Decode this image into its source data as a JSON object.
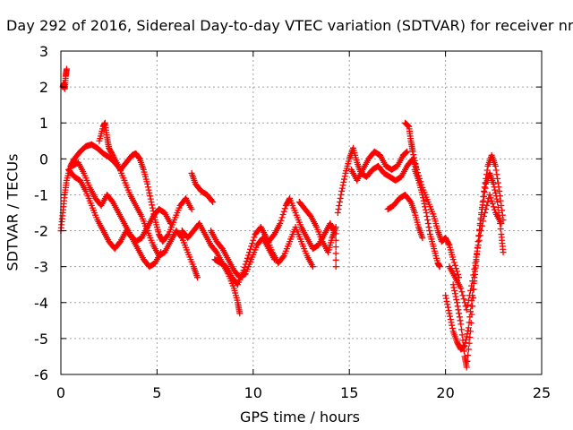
{
  "chart_data": {
    "type": "scatter",
    "title": "Day 292 of 2016, Sidereal Day-to-day VTEC variation (SDTVAR) for receiver nr",
    "xlabel": "GPS time / hours",
    "ylabel": "SDTVAR / TECUs",
    "xlim": [
      0,
      25
    ],
    "ylim": [
      -6,
      3
    ],
    "xticks": [
      0,
      5,
      10,
      15,
      20,
      25
    ],
    "yticks": [
      3,
      2,
      1,
      0,
      -1,
      -2,
      -3,
      -4,
      -5,
      -6
    ],
    "grid": true,
    "marker": "+",
    "marker_color": "#ff0000",
    "series": [
      {
        "values": [
          [
            0.1,
            2.0
          ],
          [
            0.15,
            2.1
          ],
          [
            0.2,
            1.95
          ],
          [
            0.25,
            2.3
          ],
          [
            0.3,
            2.5
          ]
        ]
      },
      {
        "values": [
          [
            0.0,
            -2.0
          ],
          [
            0.1,
            -1.5
          ],
          [
            0.2,
            -1.0
          ],
          [
            0.3,
            -0.6
          ],
          [
            0.5,
            -0.2
          ],
          [
            0.7,
            0.0
          ],
          [
            1.0,
            0.2
          ],
          [
            1.3,
            0.35
          ],
          [
            1.6,
            0.4
          ],
          [
            1.9,
            0.3
          ],
          [
            2.2,
            0.15
          ],
          [
            2.5,
            0.05
          ],
          [
            2.8,
            -0.1
          ],
          [
            3.1,
            -0.3
          ],
          [
            3.4,
            -0.1
          ],
          [
            3.7,
            0.1
          ],
          [
            3.9,
            0.15
          ],
          [
            4.1,
            0.0
          ],
          [
            4.3,
            -0.3
          ],
          [
            4.5,
            -0.7
          ],
          [
            4.7,
            -1.2
          ],
          [
            4.9,
            -1.7
          ],
          [
            5.1,
            -2.1
          ],
          [
            5.3,
            -2.3
          ],
          [
            5.6,
            -2.1
          ],
          [
            5.9,
            -1.7
          ],
          [
            6.2,
            -1.3
          ],
          [
            6.5,
            -1.1
          ],
          [
            6.8,
            -1.4
          ]
        ]
      },
      {
        "values": [
          [
            2.0,
            0.5
          ],
          [
            2.2,
            0.9
          ],
          [
            2.3,
            1.0
          ],
          [
            2.4,
            0.6
          ],
          [
            2.5,
            0.3
          ],
          [
            2.7,
            0.1
          ],
          [
            3.0,
            -0.2
          ],
          [
            3.3,
            -0.6
          ],
          [
            3.6,
            -1.0
          ],
          [
            3.9,
            -1.3
          ],
          [
            4.2,
            -1.6
          ],
          [
            4.5,
            -2.0
          ],
          [
            4.8,
            -2.4
          ],
          [
            5.1,
            -2.7
          ],
          [
            5.4,
            -2.6
          ],
          [
            5.7,
            -2.3
          ],
          [
            6.0,
            -2.0
          ],
          [
            6.3,
            -2.2
          ],
          [
            6.6,
            -2.6
          ],
          [
            6.9,
            -3.0
          ],
          [
            7.1,
            -3.3
          ]
        ]
      },
      {
        "values": [
          [
            0.4,
            -0.3
          ],
          [
            0.7,
            -0.5
          ],
          [
            1.0,
            -0.6
          ],
          [
            1.3,
            -0.9
          ],
          [
            1.6,
            -1.3
          ],
          [
            1.9,
            -1.7
          ],
          [
            2.2,
            -2.0
          ],
          [
            2.5,
            -2.3
          ],
          [
            2.8,
            -2.5
          ],
          [
            3.1,
            -2.3
          ],
          [
            3.4,
            -2.0
          ],
          [
            3.7,
            -2.2
          ],
          [
            4.0,
            -2.5
          ],
          [
            4.3,
            -2.8
          ],
          [
            4.6,
            -3.0
          ],
          [
            4.9,
            -2.9
          ],
          [
            5.2,
            -2.6
          ]
        ]
      },
      {
        "values": [
          [
            0.6,
            -0.2
          ],
          [
            0.9,
            -0.1
          ],
          [
            1.2,
            -0.4
          ],
          [
            1.5,
            -0.8
          ],
          [
            1.8,
            -1.1
          ],
          [
            2.1,
            -1.3
          ],
          [
            2.4,
            -1.0
          ],
          [
            2.7,
            -1.2
          ],
          [
            3.0,
            -1.5
          ],
          [
            3.3,
            -1.8
          ],
          [
            3.6,
            -2.1
          ],
          [
            3.9,
            -2.3
          ],
          [
            4.2,
            -2.2
          ],
          [
            4.5,
            -1.9
          ],
          [
            4.8,
            -1.6
          ],
          [
            5.1,
            -1.4
          ],
          [
            5.4,
            -1.5
          ],
          [
            5.7,
            -1.8
          ]
        ]
      },
      {
        "values": [
          [
            6.8,
            -0.4
          ],
          [
            7.0,
            -0.7
          ],
          [
            7.3,
            -0.9
          ],
          [
            7.6,
            -1.0
          ],
          [
            7.9,
            -1.2
          ]
        ]
      },
      {
        "values": [
          [
            6.3,
            -2.0
          ],
          [
            6.6,
            -2.2
          ],
          [
            6.9,
            -2.0
          ],
          [
            7.2,
            -1.8
          ],
          [
            7.5,
            -2.1
          ],
          [
            7.8,
            -2.4
          ],
          [
            8.1,
            -2.6
          ],
          [
            8.4,
            -2.9
          ],
          [
            8.7,
            -3.2
          ],
          [
            9.0,
            -3.6
          ],
          [
            9.2,
            -4.0
          ],
          [
            9.3,
            -4.3
          ]
        ]
      },
      {
        "values": [
          [
            7.8,
            -2.0
          ],
          [
            8.1,
            -2.3
          ],
          [
            8.4,
            -2.5
          ],
          [
            8.7,
            -2.8
          ],
          [
            9.0,
            -3.1
          ],
          [
            9.3,
            -3.3
          ],
          [
            9.6,
            -3.2
          ],
          [
            9.9,
            -2.8
          ],
          [
            10.2,
            -2.4
          ],
          [
            10.5,
            -2.2
          ],
          [
            10.8,
            -2.5
          ],
          [
            11.1,
            -2.8
          ]
        ]
      },
      {
        "values": [
          [
            8.0,
            -2.8
          ],
          [
            8.3,
            -2.9
          ],
          [
            8.6,
            -3.0
          ],
          [
            8.9,
            -3.3
          ],
          [
            9.2,
            -3.5
          ],
          [
            9.5,
            -3.1
          ],
          [
            9.8,
            -2.6
          ],
          [
            10.1,
            -2.1
          ],
          [
            10.4,
            -1.9
          ],
          [
            10.7,
            -2.2
          ],
          [
            11.0,
            -2.6
          ],
          [
            11.3,
            -2.9
          ],
          [
            11.6,
            -2.7
          ],
          [
            11.9,
            -2.3
          ],
          [
            12.2,
            -1.9
          ],
          [
            12.5,
            -2.3
          ],
          [
            12.8,
            -2.7
          ],
          [
            13.1,
            -3.0
          ]
        ]
      },
      {
        "values": [
          [
            10.8,
            -2.3
          ],
          [
            11.1,
            -2.1
          ],
          [
            11.4,
            -1.8
          ],
          [
            11.7,
            -1.3
          ],
          [
            11.9,
            -1.1
          ],
          [
            12.2,
            -1.5
          ],
          [
            12.5,
            -1.9
          ],
          [
            12.8,
            -2.2
          ],
          [
            13.1,
            -2.5
          ],
          [
            13.4,
            -2.4
          ],
          [
            13.7,
            -2.1
          ],
          [
            14.0,
            -1.8
          ],
          [
            14.2,
            -2.0
          ]
        ]
      },
      {
        "values": [
          [
            12.4,
            -1.2
          ],
          [
            12.7,
            -1.4
          ],
          [
            13.0,
            -1.6
          ],
          [
            13.3,
            -1.9
          ],
          [
            13.6,
            -2.3
          ],
          [
            13.9,
            -2.6
          ],
          [
            14.1,
            -2.2
          ],
          [
            14.3,
            -1.9
          ],
          [
            14.3,
            -3.0
          ]
        ]
      },
      {
        "values": [
          [
            14.4,
            -1.5
          ],
          [
            14.6,
            -0.9
          ],
          [
            14.8,
            -0.4
          ],
          [
            15.0,
            0.0
          ],
          [
            15.2,
            0.3
          ],
          [
            15.4,
            -0.1
          ],
          [
            15.6,
            -0.4
          ],
          [
            15.9,
            -0.5
          ],
          [
            16.2,
            -0.3
          ],
          [
            16.5,
            -0.2
          ],
          [
            16.8,
            -0.4
          ],
          [
            17.1,
            -0.5
          ],
          [
            17.4,
            -0.6
          ],
          [
            17.7,
            -0.5
          ],
          [
            18.0,
            -0.2
          ],
          [
            18.3,
            0.0
          ],
          [
            18.5,
            -0.3
          ]
        ]
      },
      {
        "values": [
          [
            15.1,
            -0.3
          ],
          [
            15.4,
            -0.6
          ],
          [
            15.7,
            -0.3
          ],
          [
            16.0,
            0.0
          ],
          [
            16.3,
            0.2
          ],
          [
            16.6,
            0.1
          ],
          [
            16.9,
            -0.2
          ],
          [
            17.2,
            -0.3
          ],
          [
            17.5,
            -0.2
          ],
          [
            17.8,
            0.1
          ],
          [
            18.0,
            0.2
          ]
        ]
      },
      {
        "values": [
          [
            17.9,
            1.0
          ],
          [
            18.1,
            0.9
          ],
          [
            18.2,
            0.5
          ],
          [
            18.3,
            0.2
          ],
          [
            18.5,
            -0.3
          ],
          [
            18.8,
            -0.8
          ],
          [
            19.1,
            -1.2
          ],
          [
            19.4,
            -1.6
          ],
          [
            19.6,
            -2.0
          ],
          [
            19.8,
            -2.3
          ],
          [
            20.0,
            -2.2
          ],
          [
            20.2,
            -2.4
          ],
          [
            20.4,
            -2.8
          ],
          [
            20.7,
            -3.3
          ]
        ]
      },
      {
        "values": [
          [
            18.4,
            -0.3
          ],
          [
            18.6,
            -0.6
          ],
          [
            18.8,
            -1.0
          ],
          [
            19.0,
            -1.5
          ],
          [
            19.2,
            -2.1
          ],
          [
            19.4,
            -2.5
          ],
          [
            19.6,
            -2.9
          ],
          [
            19.7,
            -3.0
          ]
        ]
      },
      {
        "values": [
          [
            17.0,
            -1.4
          ],
          [
            17.3,
            -1.3
          ],
          [
            17.6,
            -1.1
          ],
          [
            17.9,
            -1.0
          ],
          [
            18.2,
            -1.2
          ],
          [
            18.4,
            -1.5
          ],
          [
            18.6,
            -1.9
          ],
          [
            18.8,
            -2.2
          ]
        ]
      },
      {
        "values": [
          [
            20.0,
            -3.8
          ],
          [
            20.2,
            -4.3
          ],
          [
            20.4,
            -4.8
          ],
          [
            20.6,
            -5.1
          ],
          [
            20.8,
            -5.3
          ],
          [
            21.0,
            -5.2
          ],
          [
            21.2,
            -4.7
          ],
          [
            21.4,
            -3.8
          ],
          [
            21.6,
            -2.8
          ],
          [
            21.8,
            -1.8
          ],
          [
            22.0,
            -0.9
          ],
          [
            22.2,
            -0.2
          ],
          [
            22.4,
            0.1
          ],
          [
            22.6,
            -0.2
          ],
          [
            22.8,
            -0.9
          ],
          [
            23.0,
            -1.7
          ]
        ]
      },
      {
        "values": [
          [
            20.4,
            -3.5
          ],
          [
            20.6,
            -4.0
          ],
          [
            20.8,
            -4.6
          ],
          [
            21.0,
            -5.5
          ],
          [
            21.1,
            -5.8
          ],
          [
            21.3,
            -4.8
          ],
          [
            21.5,
            -3.4
          ],
          [
            21.7,
            -2.3
          ],
          [
            21.9,
            -1.4
          ],
          [
            22.1,
            -0.7
          ],
          [
            22.3,
            -0.4
          ],
          [
            22.5,
            -0.7
          ],
          [
            22.7,
            -1.2
          ],
          [
            22.9,
            -2.1
          ],
          [
            23.0,
            -2.6
          ]
        ]
      },
      {
        "values": [
          [
            20.2,
            -3.0
          ],
          [
            20.5,
            -3.3
          ],
          [
            20.8,
            -3.6
          ],
          [
            21.1,
            -4.2
          ],
          [
            21.4,
            -3.4
          ],
          [
            21.7,
            -2.4
          ],
          [
            22.0,
            -1.6
          ],
          [
            22.3,
            -1.0
          ],
          [
            22.6,
            -1.5
          ],
          [
            22.9,
            -1.8
          ]
        ]
      }
    ]
  }
}
